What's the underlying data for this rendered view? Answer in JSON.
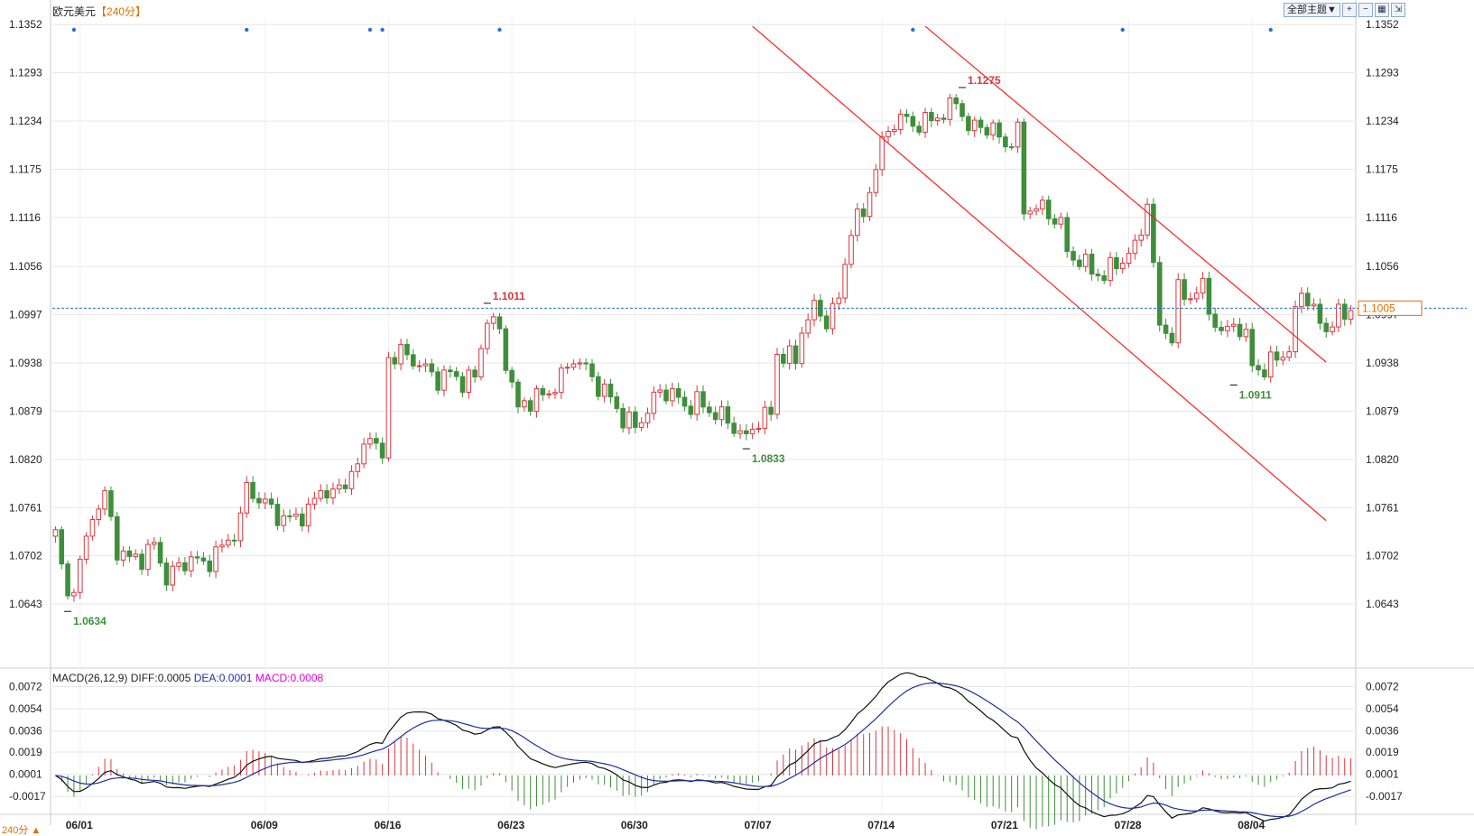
{
  "header": {
    "symbol": "欧元美元",
    "period": "【240分】"
  },
  "toolbar": {
    "theme_label": "全部主题▼",
    "icons": [
      "zoom-in-icon",
      "zoom-out-icon",
      "grid-icon",
      "expand-icon"
    ]
  },
  "macd_header": {
    "name": "MACD(26,12,9) DIFF:0.0005",
    "dea": "DEA:0.0001",
    "macd": "MACD:0.0008"
  },
  "bottom_tag": "240分 ▲",
  "colors": {
    "up": "#d9363e",
    "down": "#3f8f3a",
    "grid": "#e6e6e6",
    "channel": "#ff2020",
    "price_line": "#2a70d0",
    "current_price": "#e07000",
    "diff_line": "#111111",
    "dea_line": "#1f2fa0",
    "event_marker": "#2a70d0"
  },
  "chart_data": [
    {
      "type": "candlestick",
      "title": "欧元美元",
      "period": "240分",
      "ylim": [
        1.06,
        1.136
      ],
      "y_ticks": [
        "1.1352",
        "1.1293",
        "1.1234",
        "1.1175",
        "1.1116",
        "1.1056",
        "1.0997",
        "1.0938",
        "1.0879",
        "1.0820",
        "1.0761",
        "1.0702",
        "1.0643"
      ],
      "x_ticks": [
        {
          "label": "06/01",
          "bar": 4
        },
        {
          "label": "06/09",
          "bar": 34
        },
        {
          "label": "06/16",
          "bar": 54
        },
        {
          "label": "06/23",
          "bar": 74
        },
        {
          "label": "06/30",
          "bar": 94
        },
        {
          "label": "07/07",
          "bar": 114
        },
        {
          "label": "07/14",
          "bar": 134
        },
        {
          "label": "07/21",
          "bar": 154
        },
        {
          "label": "07/28",
          "bar": 174
        },
        {
          "label": "08/04",
          "bar": 194
        }
      ],
      "current_price": "1.1005",
      "annotations": [
        {
          "text": "1.0634",
          "bar": 2,
          "price": 1.0634,
          "kind": "low"
        },
        {
          "text": "1.1011",
          "bar": 70,
          "price": 1.1011,
          "kind": "high"
        },
        {
          "text": "1.0833",
          "bar": 112,
          "price": 1.0833,
          "kind": "low"
        },
        {
          "text": "1.1275",
          "bar": 147,
          "price": 1.1275,
          "kind": "high"
        },
        {
          "text": "1.0911",
          "bar": 191,
          "price": 1.0911,
          "kind": "low"
        }
      ],
      "event_marker_bars": [
        3,
        31,
        51,
        53,
        72,
        139,
        173,
        197
      ],
      "channel_lines": [
        {
          "from": {
            "bar": 113,
            "price": 1.135
          },
          "to": {
            "bar": 206,
            "price": 1.0745
          }
        },
        {
          "from": {
            "bar": 141,
            "price": 1.135
          },
          "to": {
            "bar": 206,
            "price": 1.0939
          }
        }
      ],
      "anchors": [
        [
          0,
          1.0728
        ],
        [
          2,
          1.065
        ],
        [
          4,
          1.069
        ],
        [
          6,
          1.0752
        ],
        [
          8,
          1.0776
        ],
        [
          10,
          1.071
        ],
        [
          12,
          1.0698
        ],
        [
          14,
          1.07
        ],
        [
          16,
          1.0715
        ],
        [
          18,
          1.0675
        ],
        [
          20,
          1.0688
        ],
        [
          22,
          1.07
        ],
        [
          24,
          1.069
        ],
        [
          26,
          1.0705
        ],
        [
          28,
          1.072
        ],
        [
          30,
          1.0745
        ],
        [
          31,
          1.0788
        ],
        [
          33,
          1.077
        ],
        [
          35,
          1.076
        ],
        [
          37,
          1.0745
        ],
        [
          39,
          1.075
        ],
        [
          41,
          1.0755
        ],
        [
          43,
          1.0785
        ],
        [
          45,
          1.0775
        ],
        [
          47,
          1.0795
        ],
        [
          49,
          1.081
        ],
        [
          51,
          1.086
        ],
        [
          52,
          1.083
        ],
        [
          53,
          1.082
        ],
        [
          54,
          1.0945
        ],
        [
          56,
          1.095
        ],
        [
          58,
          1.0942
        ],
        [
          60,
          1.093
        ],
        [
          62,
          1.0918
        ],
        [
          64,
          1.0925
        ],
        [
          66,
          1.0915
        ],
        [
          68,
          1.092
        ],
        [
          69,
          1.096
        ],
        [
          70,
          1.0992
        ],
        [
          72,
          1.0978
        ],
        [
          73,
          1.094
        ],
        [
          75,
          1.088
        ],
        [
          76,
          1.089
        ],
        [
          78,
          1.0895
        ],
        [
          80,
          1.0902
        ],
        [
          82,
          1.092
        ],
        [
          84,
          1.0945
        ],
        [
          86,
          1.093
        ],
        [
          88,
          1.091
        ],
        [
          90,
          1.0895
        ],
        [
          92,
          1.087
        ],
        [
          94,
          1.086
        ],
        [
          96,
          1.088
        ],
        [
          98,
          1.0905
        ],
        [
          100,
          1.09
        ],
        [
          102,
          1.0885
        ],
        [
          104,
          1.089
        ],
        [
          106,
          1.088
        ],
        [
          108,
          1.0872
        ],
        [
          110,
          1.086
        ],
        [
          112,
          1.0845
        ],
        [
          114,
          1.087
        ],
        [
          116,
          1.0875
        ],
        [
          117,
          1.095
        ],
        [
          119,
          1.0945
        ],
        [
          120,
          1.094
        ],
        [
          121,
          1.098
        ],
        [
          123,
          1.1005
        ],
        [
          125,
          1.099
        ],
        [
          127,
          1.1015
        ],
        [
          128,
          1.106
        ],
        [
          129,
          1.1105
        ],
        [
          131,
          1.112
        ],
        [
          133,
          1.118
        ],
        [
          135,
          1.1225
        ],
        [
          137,
          1.1238
        ],
        [
          139,
          1.123
        ],
        [
          141,
          1.1232
        ],
        [
          143,
          1.124
        ],
        [
          145,
          1.1248
        ],
        [
          146,
          1.126
        ],
        [
          147,
          1.1245
        ],
        [
          148,
          1.1222
        ],
        [
          150,
          1.123
        ],
        [
          152,
          1.1222
        ],
        [
          154,
          1.1205
        ],
        [
          156,
          1.1218
        ],
        [
          157,
          1.1125
        ],
        [
          159,
          1.113
        ],
        [
          161,
          1.112
        ],
        [
          163,
          1.111
        ],
        [
          164,
          1.107
        ],
        [
          166,
          1.1065
        ],
        [
          168,
          1.105
        ],
        [
          170,
          1.1045
        ],
        [
          172,
          1.106
        ],
        [
          174,
          1.107
        ],
        [
          175,
          1.108
        ],
        [
          176,
          1.11
        ],
        [
          177,
          1.114
        ],
        [
          178,
          1.105
        ],
        [
          179,
          1.0985
        ],
        [
          181,
          1.097
        ],
        [
          182,
          1.1025
        ],
        [
          184,
          1.102
        ],
        [
          186,
          1.103
        ],
        [
          187,
          1.1005
        ],
        [
          189,
          1.097
        ],
        [
          191,
          1.099
        ],
        [
          193,
          1.0965
        ],
        [
          194,
          1.094
        ],
        [
          196,
          1.0925
        ],
        [
          198,
          1.095
        ],
        [
          200,
          1.0948
        ],
        [
          201,
          1.1
        ],
        [
          202,
          1.103
        ],
        [
          204,
          1.0998
        ],
        [
          206,
          1.098
        ],
        [
          208,
          1.0995
        ],
        [
          210,
          1.1005
        ]
      ]
    },
    {
      "type": "line+bar",
      "title": "MACD(26,12,9)",
      "ylim": [
        -0.003,
        0.0076
      ],
      "y_ticks": [
        "0.0072",
        "0.0054",
        "0.0036",
        "0.0019",
        "0.0001",
        "-0.0017"
      ],
      "series": [
        {
          "name": "DIFF",
          "value": "0.0005"
        },
        {
          "name": "DEA",
          "value": "0.0001"
        },
        {
          "name": "MACD",
          "value": "0.0008"
        }
      ]
    }
  ]
}
